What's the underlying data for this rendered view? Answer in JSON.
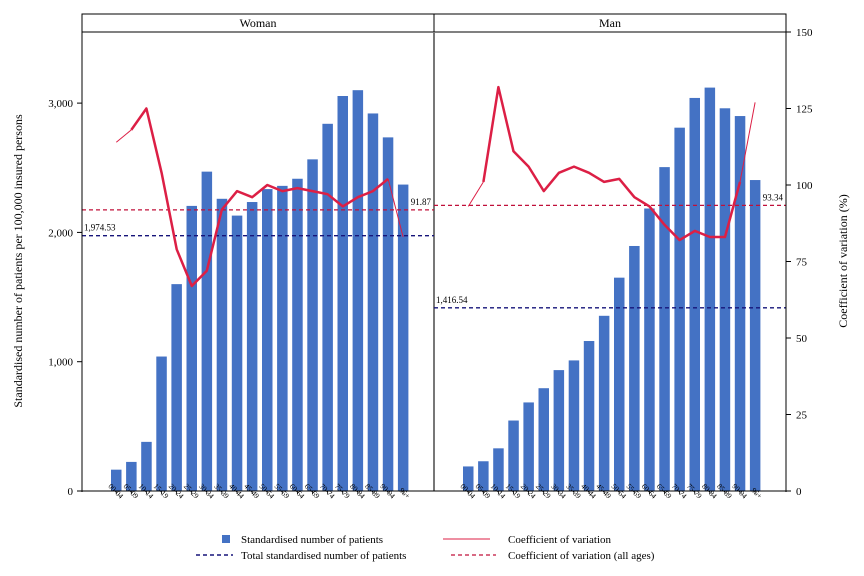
{
  "chart_data": {
    "type": "bar",
    "ylabel": "Standardised number of patients per 100,000 insured persons",
    "y2label": "Coefficient of variation (%)",
    "ylim": [
      0,
      3550
    ],
    "y2lim": [
      0,
      150
    ],
    "yticks": [
      "0",
      "1,000",
      "2,000",
      "3,000"
    ],
    "y2ticks": [
      "0",
      "25",
      "50",
      "75",
      "100",
      "125",
      "150"
    ],
    "categories": [
      "00-04",
      "05-09",
      "10-14",
      "15-19",
      "20-24",
      "25-29",
      "30-34",
      "35-39",
      "40-44",
      "45-49",
      "50-54",
      "55-59",
      "60-64",
      "65-69",
      "70-74",
      "75-79",
      "80-84",
      "85-89",
      "90-94",
      "95+"
    ],
    "panels": [
      {
        "title": "Woman",
        "patients": [
          165,
          225,
          380,
          1040,
          1600,
          2205,
          2470,
          2260,
          2130,
          2235,
          2335,
          2360,
          2415,
          2565,
          2840,
          3055,
          3100,
          2920,
          2735,
          2370
        ],
        "cv": [
          114,
          118,
          125,
          104,
          79,
          67,
          72,
          92,
          98,
          96,
          100,
          98,
          99,
          98,
          97,
          93,
          96,
          98,
          102,
          83
        ],
        "total_patients": 1974.53,
        "total_patients_label": "1,974.53",
        "cv_all": 91.87,
        "cv_all_label": "91.87"
      },
      {
        "title": "Man",
        "patients": [
          190,
          230,
          330,
          545,
          685,
          795,
          935,
          1010,
          1160,
          1355,
          1650,
          1895,
          2185,
          2505,
          2810,
          3040,
          3120,
          2960,
          2900,
          2405
        ],
        "cv": [
          93,
          101,
          132,
          111,
          106,
          98,
          104,
          106,
          104,
          101,
          102,
          96,
          93,
          87,
          82,
          85,
          83,
          83,
          101,
          127
        ],
        "total_patients": 1416.54,
        "total_patients_label": "1,416.54",
        "cv_all": 93.34,
        "cv_all_label": "93.34"
      }
    ],
    "legend": {
      "bar": "Standardised number of patients",
      "total": "Total standardised number of patients",
      "cv": "Coefficient of variation",
      "cv_all": "Coefficient of variation (all ages)"
    },
    "colors": {
      "bar": "#4472c4",
      "cv": "#dc1f45",
      "total": "#16147a",
      "cv_all": "#c0103a"
    }
  }
}
